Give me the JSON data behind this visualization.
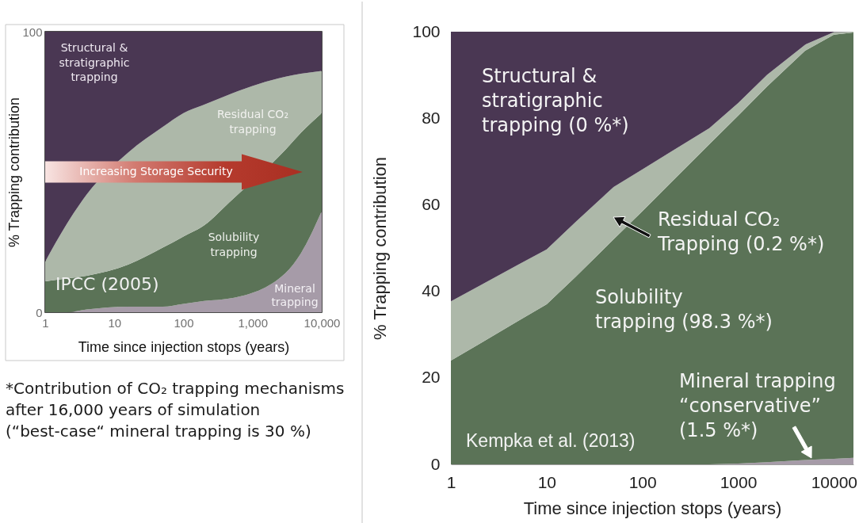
{
  "chart_data": [
    {
      "type": "area",
      "stacked": true,
      "log": "x",
      "xlabel": "Time since injection stops (years)",
      "ylabel": "% Trapping contribution",
      "x": [
        1,
        2,
        4,
        16,
        50,
        100,
        200,
        500,
        3000,
        5000,
        10000
      ],
      "xlim": [
        1,
        10000
      ],
      "xticks": [
        1,
        10,
        100,
        {
          "value": 1000,
          "label": "1,000"
        },
        {
          "value": 10000,
          "label": "10,000"
        }
      ],
      "ylim": [
        0,
        100
      ],
      "yticks": [
        0,
        100
      ],
      "series": [
        {
          "color": "#a69ba8",
          "values": [
            0,
            0,
            1,
            2,
            2,
            3,
            4,
            5,
            14,
            21,
            36
          ]
        },
        {
          "color": "#5b7357",
          "values": [
            11,
            12,
            12,
            15,
            21,
            24,
            27,
            35,
            44,
            43,
            35
          ]
        },
        {
          "color": "#adb8a9",
          "values": [
            7,
            19,
            29,
            40,
            43,
            44,
            43,
            38,
            26,
            21,
            15
          ]
        },
        {
          "color": "#4a3753",
          "values": [
            82,
            69,
            58,
            43,
            34,
            29,
            26,
            22,
            16,
            15,
            14
          ]
        }
      ],
      "annotations": [
        "Structural &\nstratigraphic\ntrapping",
        "Residual CO₂\ntrapping",
        "Solubility\ntrapping",
        "Mineral\ntrapping",
        "Increasing Storage Security",
        "IPCC (2005)",
        "*Contribution of CO₂ trapping mechanisms\nafter 16,000 years of simulation\n(“best-case“ mineral trapping is 30 %)"
      ]
    },
    {
      "type": "area",
      "stacked": true,
      "log": "x",
      "xlabel": "Time since injection stops (years)",
      "ylabel": "% Trapping contribution",
      "x": [
        1,
        2,
        5,
        10,
        20,
        50,
        100,
        200,
        500,
        1000,
        2000,
        5000,
        10000,
        16000
      ],
      "xlim": [
        1,
        16000
      ],
      "xticks": [
        1,
        10,
        100,
        1000,
        10000
      ],
      "ylim": [
        0,
        100
      ],
      "yticks": [
        0,
        20,
        40,
        60,
        80,
        100
      ],
      "series": [
        {
          "color": "#a59bad",
          "values": [
            0,
            0,
            0,
            0,
            0,
            0,
            0,
            0,
            0,
            0.2,
            0.5,
            1.0,
            1.3,
            1.5
          ]
        },
        {
          "color": "#5c7557",
          "values": [
            24,
            27.9,
            33.1,
            37,
            43.3,
            52,
            58.5,
            65.2,
            74,
            80.4,
            86.8,
            94.6,
            98,
            98.3
          ]
        },
        {
          "color": "#adb9ab",
          "values": [
            13.7,
            13.4,
            13,
            12.7,
            12.7,
            12.1,
            9.7,
            7.1,
            3.7,
            2.9,
            2.7,
            1.4,
            0.6,
            0.2
          ]
        },
        {
          "color": "#4b3753",
          "values": [
            62.3,
            58.7,
            53.9,
            50.3,
            44,
            35.9,
            31.8,
            27.7,
            22.3,
            16.5,
            10,
            3,
            0.1,
            0
          ]
        }
      ],
      "annotations": [
        "Structural &\nstratigraphic\ntrapping (0 %*)",
        "Residual CO₂\nTrapping (0.2 %*)",
        "Solubility\ntrapping (98.3 %*)",
        "Mineral trapping\n“conservative”\n(1.5 %*)",
        "Kempka et al. (2013)"
      ]
    }
  ]
}
